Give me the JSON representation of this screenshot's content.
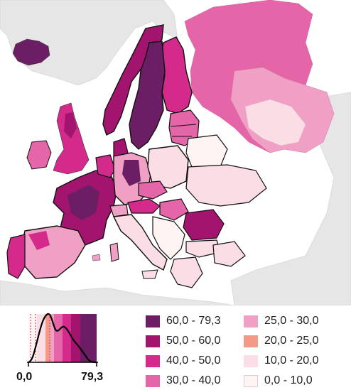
{
  "legend": {
    "items": [
      {
        "label": "60,0 - 79,3",
        "color": "#6b1e63"
      },
      {
        "label": "50,0 - 60,0",
        "color": "#a3146f"
      },
      {
        "label": "40,0 - 50,0",
        "color": "#d42a8c"
      },
      {
        "label": "30,0 - 40,0",
        "color": "#e466a8"
      },
      {
        "label": "25,0 - 30,0",
        "color": "#f0a0c4"
      },
      {
        "label": "20,0 - 25,0",
        "color": "#f29a87"
      },
      {
        "label": "10,0 - 20,0",
        "color": "#fbdde6"
      },
      {
        "label": "0,0 - 10,0",
        "color": "#fef4f4"
      }
    ]
  },
  "histogram": {
    "min_label": "0,0",
    "max_label": "79,3"
  },
  "colors": {
    "sea": "#ffffff",
    "non_data_land": "#e6e6e6",
    "border": "#111111"
  }
}
